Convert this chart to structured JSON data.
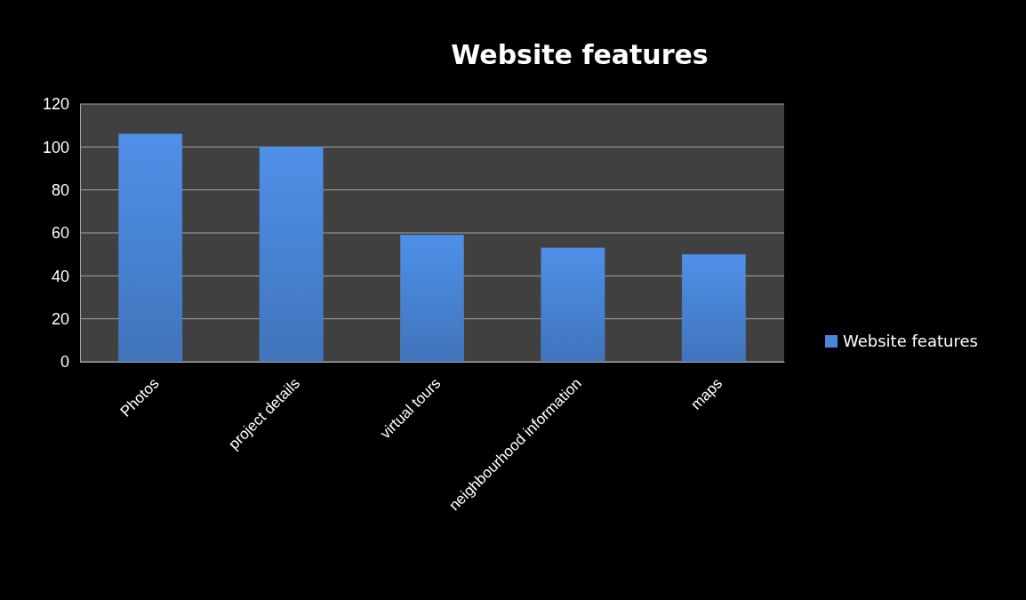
{
  "chart_data": {
    "type": "bar",
    "title": "Website features",
    "categories": [
      "Photos",
      "project details",
      "virtual tours",
      "neighbourhood information",
      "maps"
    ],
    "series": [
      {
        "name": "Website features",
        "color": "#4a86d8",
        "values": [
          106,
          100,
          59,
          53,
          50
        ]
      }
    ],
    "ylim": [
      0,
      120
    ],
    "yticks": [
      0,
      20,
      40,
      60,
      80,
      100,
      120
    ],
    "grid": "y",
    "legend": "right"
  }
}
